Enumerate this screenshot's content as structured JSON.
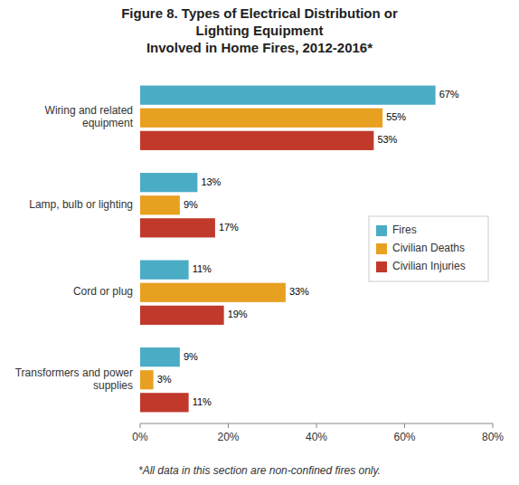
{
  "chart_data": {
    "type": "bar",
    "orientation": "horizontal",
    "title": "Figure 8. Types of Electrical Distribution or\nLighting Equipment\nInvolved in Home Fires, 2012-2016*",
    "annotations": [
      "*All data in this section are non-confined fires only."
    ],
    "categories": [
      "Wiring and related\nequipment",
      "Lamp, bulb or lighting",
      "Cord or plug",
      "Transformers and power\nsupplies"
    ],
    "series": [
      {
        "name": "Fires",
        "color": "#4BACC6",
        "values": [
          67,
          13,
          11,
          9
        ],
        "value_labels": [
          "67%",
          "13%",
          "11%",
          "9%"
        ]
      },
      {
        "name": "Civilian Deaths",
        "color": "#E8A020",
        "values": [
          55,
          9,
          33,
          3
        ],
        "value_labels": [
          "55%",
          "9%",
          "33%",
          "3%"
        ]
      },
      {
        "name": "Civilian Injuries",
        "color": "#C0392B",
        "values": [
          53,
          17,
          19,
          11
        ],
        "value_labels": [
          "53%",
          "17%",
          "19%",
          "11%"
        ]
      }
    ],
    "xlim": [
      0,
      80
    ],
    "xticks": [
      {
        "value": 0,
        "label": "0%"
      },
      {
        "value": 20,
        "label": "20%"
      },
      {
        "value": 40,
        "label": "40%"
      },
      {
        "value": 60,
        "label": "60%"
      },
      {
        "value": 80,
        "label": "80%"
      }
    ],
    "data_labels": true,
    "grid": false,
    "legend": "right"
  }
}
